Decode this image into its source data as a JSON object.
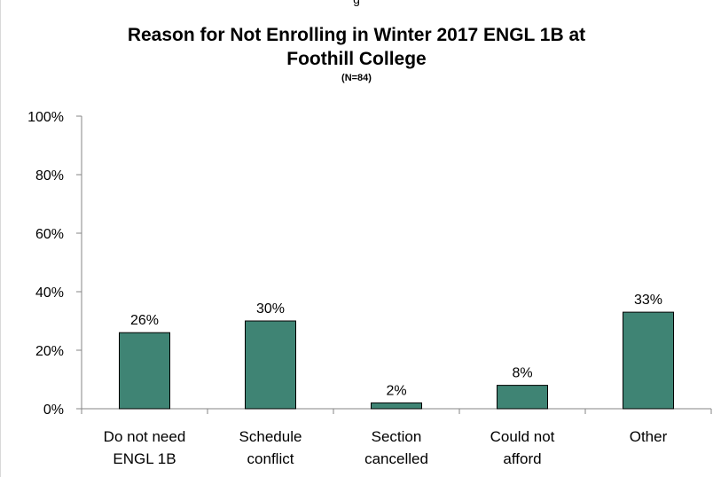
{
  "header": {
    "top_fragment": "g"
  },
  "chart_data": {
    "type": "bar",
    "title": "Reason for Not Enrolling in Winter 2017 ENGL 1B at Foothill College",
    "title_lines": [
      "Reason for Not Enrolling in Winter 2017 ENGL 1B at",
      "Foothill College"
    ],
    "subtitle": "(N=84)",
    "categories": [
      [
        "Do not need",
        "ENGL 1B"
      ],
      [
        "Schedule",
        "conflict"
      ],
      [
        "Section",
        "cancelled"
      ],
      [
        "Could not",
        "afford"
      ],
      [
        "Other"
      ]
    ],
    "values": [
      26,
      30,
      2,
      8,
      33
    ],
    "data_labels": [
      "26%",
      "30%",
      "2%",
      "8%",
      "33%"
    ],
    "ylim": [
      0,
      100
    ],
    "yticks": [
      "0%",
      "20%",
      "40%",
      "60%",
      "80%",
      "100%"
    ],
    "grid": false,
    "legend": "none",
    "bar_color": "#3f8474",
    "bar_border": "#000000"
  }
}
